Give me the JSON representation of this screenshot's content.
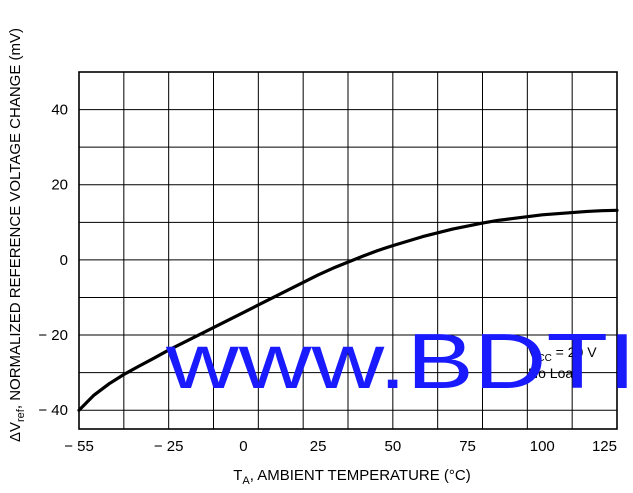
{
  "chart_data": {
    "type": "line",
    "title": "",
    "xlabel": "Tₐ, AMBIENT TEMPERATURE (°C)",
    "xlabel_main": "T",
    "xlabel_sub": "A",
    "xlabel_rest": ", AMBIENT TEMPERATURE (°C)",
    "ylabel_prefix": "ΔV",
    "ylabel_sub": "ref",
    "ylabel_rest": ", NORMALIZED REFERENCE VOLTAGE CHANGE (mV)",
    "xlim": [
      -55,
      125
    ],
    "ylim": [
      -45,
      50
    ],
    "grid": true,
    "x_ticks": [
      {
        "value": -55,
        "label": "− 55"
      },
      {
        "value": -25,
        "label": "− 25"
      },
      {
        "value": 0,
        "label": "0"
      },
      {
        "value": 25,
        "label": "25"
      },
      {
        "value": 50,
        "label": "50"
      },
      {
        "value": 75,
        "label": "75"
      },
      {
        "value": 100,
        "label": "100"
      },
      {
        "value": 125,
        "label": "125"
      }
    ],
    "y_ticks": [
      {
        "value": 40,
        "label": "40"
      },
      {
        "value": 20,
        "label": "20"
      },
      {
        "value": 0,
        "label": "0"
      },
      {
        "value": -20,
        "label": "− 20"
      },
      {
        "value": -40,
        "label": "− 40"
      }
    ],
    "series": [
      {
        "x": [
          -55,
          -50,
          -45,
          -40,
          -35,
          -30,
          -25,
          -20,
          -15,
          -10,
          -5,
          0,
          5,
          10,
          15,
          20,
          25,
          30,
          35,
          40,
          45,
          50,
          55,
          60,
          65,
          70,
          75,
          80,
          85,
          90,
          95,
          100,
          105,
          110,
          115,
          120,
          125
        ],
        "y": [
          -40,
          -36,
          -33,
          -30.5,
          -28.3,
          -26.2,
          -24,
          -22,
          -20,
          -18,
          -16,
          -14,
          -12,
          -10,
          -8,
          -6,
          -4,
          -2.2,
          -0.6,
          1,
          2.5,
          3.8,
          5,
          6.2,
          7.2,
          8.2,
          9,
          9.8,
          10.5,
          11,
          11.5,
          12,
          12.3,
          12.6,
          12.9,
          13.1,
          13.2
        ]
      }
    ],
    "annotations": {
      "vcc_prefix": "V",
      "vcc_sub": "CC",
      "vcc_rest": " = 20 V",
      "load": "No Load"
    },
    "watermark": "www.BDTI"
  }
}
